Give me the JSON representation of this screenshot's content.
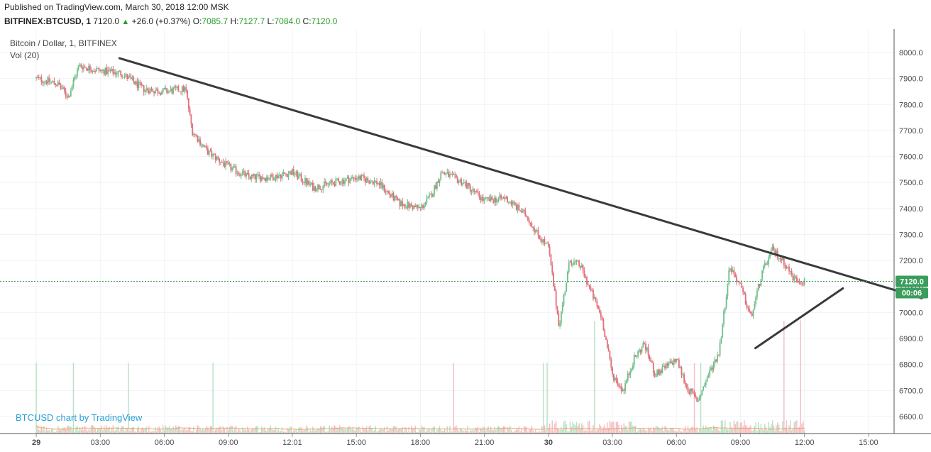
{
  "header": {
    "published": "Published on TradingView.com, March 30, 2018 12:00 MSK",
    "symbol": "BITFINEX:BTCUSD, 1",
    "last": "7120.0",
    "change": "+26.0 (+0.37%)",
    "open_label": "O:",
    "open": "7085.7",
    "high_label": "H:",
    "high": "7127.7",
    "low_label": "L:",
    "low": "7084.0",
    "close_label": "C:",
    "close": "7120.0"
  },
  "legend": {
    "series": "Bitcoin / Dollar, 1, BITFINEX",
    "volume": "Vol (20)"
  },
  "watermark": "BTCUSD chart by TradingView",
  "colors": {
    "up": "#6fbf8a",
    "down": "#e0707a",
    "trendline": "#3a3a3a",
    "price_tag": "#3a9d5d",
    "grid": "#f0f3f5",
    "volume_ma": "#f2a15a"
  },
  "chart_data": {
    "type": "candlestick",
    "title": "Bitcoin / Dollar, 1, BITFINEX",
    "x_ticks": [
      "29",
      "03:00",
      "06:00",
      "09:00",
      "12:01",
      "15:00",
      "18:00",
      "21:00",
      "30",
      "03:00",
      "06:00",
      "09:00",
      "12:00",
      "15:00"
    ],
    "y_ticks": [
      "8000.0",
      "7900.0",
      "7800.0",
      "7700.0",
      "7600.0",
      "7500.0",
      "7400.0",
      "7300.0",
      "7200.0",
      "7100.0",
      "7000.0",
      "6900.0",
      "6800.0",
      "6700.0",
      "6600.0"
    ],
    "ylim": [
      6560,
      8040
    ],
    "x_range_hours": [
      -1.7,
      40.2
    ],
    "price_path_hours": [
      0,
      1,
      1.5,
      2,
      3,
      4,
      5,
      6,
      7,
      7.3,
      8,
      9,
      10,
      11,
      12,
      13,
      14,
      15,
      16,
      17,
      18,
      18.5,
      19,
      20,
      21,
      22,
      23,
      23.5,
      24,
      24.5,
      25,
      25.5,
      26,
      26.5,
      27,
      27.5,
      28,
      28.5,
      29,
      30,
      30.5,
      31,
      31.5,
      32,
      32.5,
      33,
      33.5,
      34,
      34.5,
      35,
      35.5,
      36
    ],
    "price_path_values": [
      7900,
      7880,
      7830,
      7950,
      7930,
      7920,
      7860,
      7850,
      7860,
      7700,
      7620,
      7560,
      7520,
      7520,
      7540,
      7480,
      7500,
      7520,
      7500,
      7420,
      7400,
      7450,
      7540,
      7500,
      7430,
      7440,
      7370,
      7300,
      7250,
      6950,
      7200,
      7180,
      7080,
      6980,
      6760,
      6700,
      6820,
      6880,
      6760,
      6820,
      6710,
      6660,
      6760,
      6850,
      7180,
      7100,
      6980,
      7150,
      7240,
      7200,
      7130,
      7120
    ],
    "trendlines": [
      {
        "x": [
          3.9,
          41.5
        ],
        "y": [
          7978,
          7055
        ]
      },
      {
        "x": [
          33.7,
          37.8
        ],
        "y": [
          6863,
          7093
        ]
      }
    ],
    "current_price": 7120.0,
    "price_tag": "7120.0",
    "countdown": "00:06",
    "volume_indicator": "Vol (20)"
  }
}
